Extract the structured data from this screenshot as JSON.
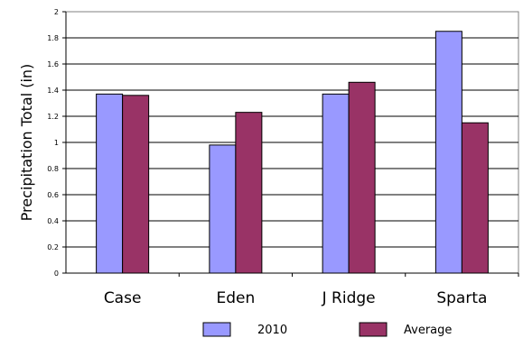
{
  "chart_data": {
    "type": "bar",
    "title": "",
    "xlabel": "",
    "ylabel": "Precipitation Total (in)",
    "categories": [
      "Case",
      "Eden",
      "J Ridge",
      "Sparta"
    ],
    "series": [
      {
        "name": "2010",
        "values": [
          1.37,
          0.98,
          1.37,
          1.85
        ],
        "color": "#9999ff"
      },
      {
        "name": "Average",
        "values": [
          1.36,
          1.23,
          1.46,
          1.15
        ],
        "color": "#993366"
      }
    ],
    "ylim": [
      0,
      2
    ],
    "yticks": [
      "0",
      "0.2",
      "0.4",
      "0.6",
      "0.8",
      "1",
      "1.2",
      "1.4",
      "1.6",
      "1.8",
      "2"
    ],
    "grid": true,
    "legend": "bottom"
  }
}
